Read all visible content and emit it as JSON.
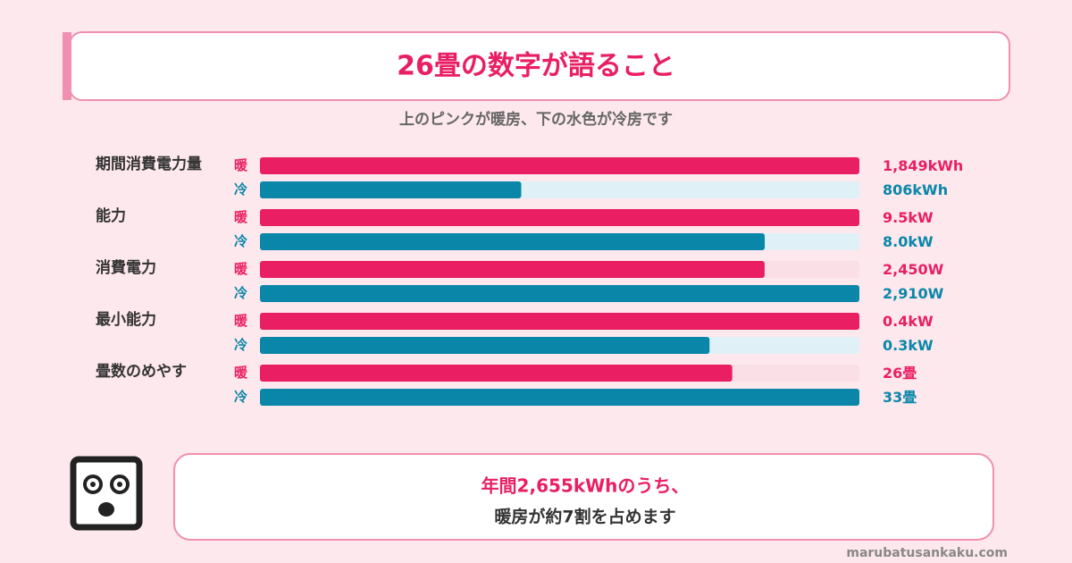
{
  "chart_data": {
    "type": "bar",
    "title": "26畳の数字が語ること",
    "subtitle": "上のピンクが暖房、下の水色が冷房です",
    "categories": [
      "期間消費電力量",
      "能力",
      "消費電力",
      "最小能力",
      "畳数のめやす"
    ],
    "series": [
      {
        "name": "暖",
        "color": "#e91e63",
        "values": [
          1849,
          9.5,
          2450,
          0.4,
          26
        ],
        "value_labels": [
          "1,849kWh",
          "9.5kW",
          "2,450W",
          "0.4kW",
          "26畳"
        ]
      },
      {
        "name": "冷",
        "color": "#0a87a8",
        "values": [
          806,
          8.0,
          2910,
          0.3,
          33
        ],
        "value_labels": [
          "806kWh",
          "8.0kW",
          "2,910W",
          "0.3kW",
          "33畳"
        ]
      }
    ],
    "annotations": [
      "年間2,655kWhのうち、",
      "暖房が約7割を占めます"
    ],
    "source": "marubatusankaku.com"
  }
}
